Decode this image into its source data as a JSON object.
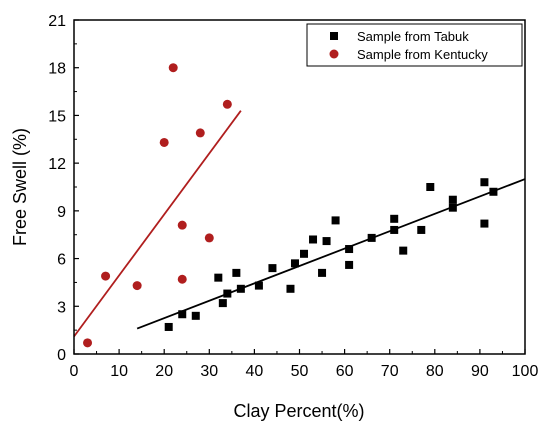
{
  "chart_data": {
    "type": "scatter",
    "xlabel": "Clay Percent(%)",
    "ylabel": "Free Swell (%)",
    "xlim": [
      0,
      100
    ],
    "ylim": [
      0,
      21
    ],
    "xticks": [
      0,
      10,
      20,
      30,
      40,
      50,
      60,
      70,
      80,
      90,
      100
    ],
    "yticks": [
      0,
      3,
      6,
      9,
      12,
      15,
      18,
      21
    ],
    "xtick_labels": [
      "0",
      "10",
      "20",
      "30",
      "40",
      "50",
      "60",
      "70",
      "80",
      "90",
      "100"
    ],
    "ytick_labels": [
      "0",
      "3",
      "6",
      "9",
      "12",
      "15",
      "18",
      "21"
    ],
    "grid": false,
    "legend_position": "top-right",
    "series": [
      {
        "name": "Sample from Tabuk",
        "marker": "square",
        "color": "#000000",
        "points": [
          [
            21,
            1.7
          ],
          [
            24,
            2.5
          ],
          [
            27,
            2.4
          ],
          [
            32,
            4.8
          ],
          [
            33,
            3.2
          ],
          [
            34,
            3.8
          ],
          [
            36,
            5.1
          ],
          [
            37,
            4.1
          ],
          [
            41,
            4.3
          ],
          [
            44,
            5.4
          ],
          [
            48,
            4.1
          ],
          [
            49,
            5.7
          ],
          [
            51,
            6.3
          ],
          [
            53,
            7.2
          ],
          [
            55,
            5.1
          ],
          [
            56,
            7.1
          ],
          [
            58,
            8.4
          ],
          [
            61,
            5.6
          ],
          [
            61,
            6.6
          ],
          [
            66,
            7.3
          ],
          [
            71,
            8.5
          ],
          [
            71,
            7.8
          ],
          [
            73,
            6.5
          ],
          [
            77,
            7.8
          ],
          [
            79,
            10.5
          ],
          [
            84,
            9.7
          ],
          [
            84,
            9.2
          ],
          [
            91,
            10.8
          ],
          [
            91,
            8.2
          ],
          [
            93,
            10.2
          ]
        ],
        "trendline": {
          "x": [
            14,
            100
          ],
          "y": [
            1.6,
            11.0
          ]
        }
      },
      {
        "name": "Sample from Kentucky",
        "marker": "circle",
        "color": "#b01e1e",
        "points": [
          [
            3,
            0.7
          ],
          [
            7,
            4.9
          ],
          [
            14,
            4.3
          ],
          [
            20,
            13.3
          ],
          [
            22,
            18.0
          ],
          [
            24,
            8.1
          ],
          [
            24,
            4.7
          ],
          [
            28,
            13.9
          ],
          [
            30,
            7.3
          ],
          [
            34,
            15.7
          ]
        ],
        "trendline": {
          "x": [
            0,
            37
          ],
          "y": [
            1.1,
            15.3
          ]
        }
      }
    ]
  }
}
